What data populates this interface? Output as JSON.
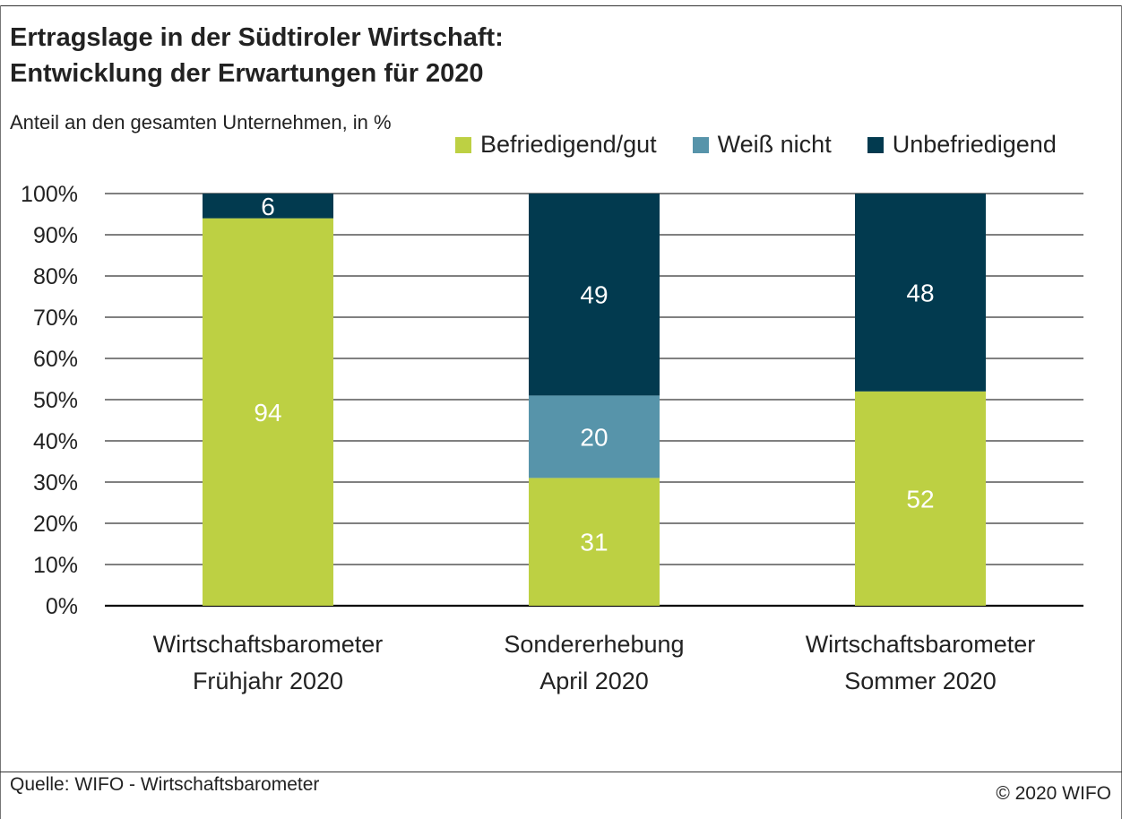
{
  "header": {
    "title_line1": "Ertragslage in der Südtiroler Wirtschaft:",
    "title_line2": "Entwicklung der Erwartungen für 2020",
    "subtitle": "Anteil an den gesamten Unternehmen, in %"
  },
  "footer": {
    "source": "Quelle: WIFO - Wirtschaftsbarometer",
    "copyright": "© 2020 WIFO"
  },
  "colors": {
    "befriedigend": "#bdd043",
    "weiss_nicht": "#5794aa",
    "unbefriedigend": "#023a4f"
  },
  "chart_data": {
    "type": "bar",
    "stacked": true,
    "categories": [
      [
        "Wirtschaftsbarometer",
        "Frühjahr 2020"
      ],
      [
        "Sondererhebung",
        "April 2020"
      ],
      [
        "Wirtschaftsbarometer",
        "Sommer 2020"
      ]
    ],
    "series": [
      {
        "name": "Befriedigend/gut",
        "color": "#bdd043",
        "values": [
          94,
          31,
          52
        ]
      },
      {
        "name": "Weiß nicht",
        "color": "#5794aa",
        "values": [
          0,
          20,
          0
        ]
      },
      {
        "name": "Unbefriedigend",
        "color": "#023a4f",
        "values": [
          6,
          49,
          48
        ]
      }
    ],
    "yticks": [
      "0%",
      "10%",
      "20%",
      "30%",
      "40%",
      "50%",
      "60%",
      "70%",
      "80%",
      "90%",
      "100%"
    ],
    "ylim": [
      0,
      100
    ],
    "grid": true,
    "legend_position": "top-right"
  }
}
